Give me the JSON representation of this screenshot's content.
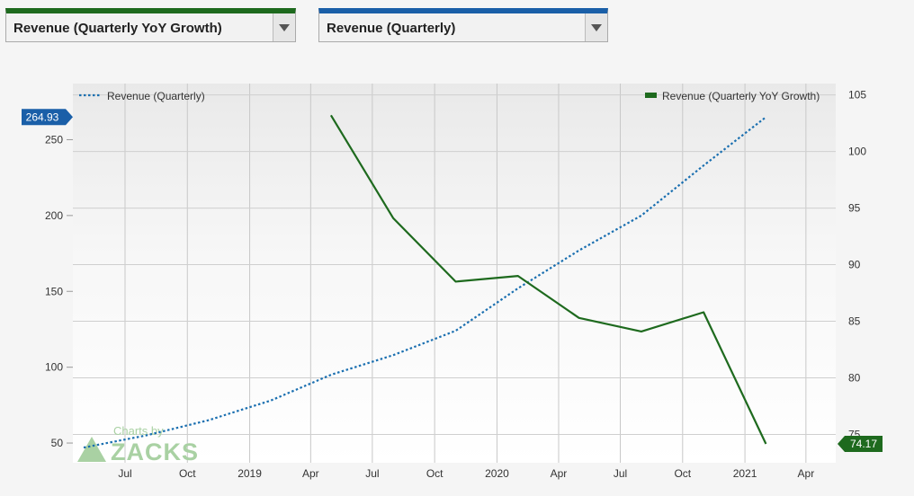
{
  "controls": {
    "left_select": "Revenue (Quarterly YoY Growth)",
    "right_select": "Revenue (Quarterly)"
  },
  "colors": {
    "revenue": "#1a6fb0",
    "growth": "#1e6a1e",
    "left_badge": "#1a5fa8",
    "right_badge": "#1e6a1e"
  },
  "chart_data": {
    "type": "line",
    "x_ticks": [
      "Jul",
      "Oct",
      "2019",
      "Apr",
      "Jul",
      "Oct",
      "2020",
      "Apr",
      "Jul",
      "Oct",
      "2021",
      "Apr"
    ],
    "left_axis": {
      "ticks": [
        "50",
        "100",
        "150",
        "200",
        "250"
      ],
      "ylim": [
        37,
        287
      ]
    },
    "right_axis": {
      "ticks": [
        "75",
        "80",
        "85",
        "90",
        "95",
        "100",
        "105"
      ],
      "ylim": [
        72.5,
        106
      ]
    },
    "xlim": [
      "2018-04-15",
      "2021-05-15"
    ],
    "series": [
      {
        "name": "Revenue (Quarterly)",
        "axis": "left",
        "style": "dotted",
        "points": [
          [
            "2018-05-01",
            47
          ],
          [
            "2018-08-01",
            55
          ],
          [
            "2018-11-01",
            65
          ],
          [
            "2019-02-01",
            78
          ],
          [
            "2019-05-01",
            95
          ],
          [
            "2019-08-01",
            108
          ],
          [
            "2019-11-01",
            124
          ],
          [
            "2020-02-01",
            152
          ],
          [
            "2020-05-01",
            177
          ],
          [
            "2020-08-01",
            200
          ],
          [
            "2020-11-01",
            233
          ],
          [
            "2021-02-01",
            264.93
          ]
        ]
      },
      {
        "name": "Revenue (Quarterly YoY Growth)",
        "axis": "right",
        "style": "solid",
        "points": [
          [
            "2019-05-01",
            103.2
          ],
          [
            "2019-08-01",
            94.1
          ],
          [
            "2019-11-01",
            88.5
          ],
          [
            "2020-02-01",
            89.0
          ],
          [
            "2020-05-01",
            85.3
          ],
          [
            "2020-08-01",
            84.1
          ],
          [
            "2020-11-01",
            85.8
          ],
          [
            "2021-02-01",
            74.17
          ]
        ]
      }
    ],
    "left_last_label": "264.93",
    "right_last_label": "74.17",
    "watermark": {
      "line1": "Charts by",
      "line2": "ZACKS"
    }
  }
}
